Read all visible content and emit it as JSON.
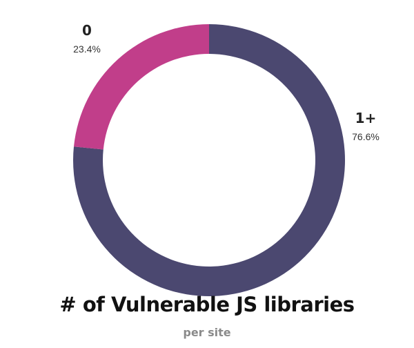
{
  "chart_data": {
    "type": "pie",
    "donut": true,
    "title": "# of Vulnerable JS libraries",
    "subtitle": "per site",
    "slices": [
      {
        "label": "1+",
        "percent_label": "76.6%",
        "value": 76.6,
        "color": "#4b4870"
      },
      {
        "label": "0",
        "percent_label": "23.4%",
        "value": 23.4,
        "color": "#c13e8a"
      }
    ],
    "legend": "none"
  }
}
